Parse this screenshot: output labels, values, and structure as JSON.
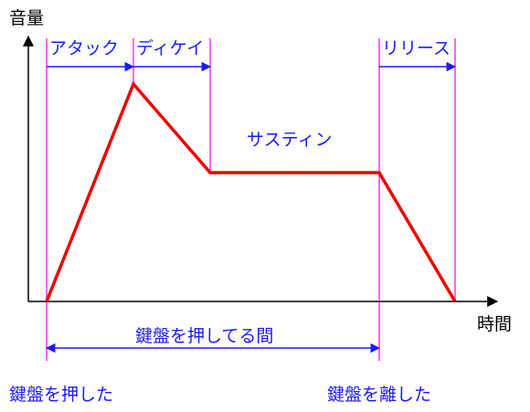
{
  "title": "",
  "axes": {
    "y_label": "音量",
    "x_label": "時間"
  },
  "phases": {
    "attack": "アタック",
    "decay": "ディケイ",
    "sustain": "サスティン",
    "release": "リリース"
  },
  "span": {
    "held_label": "鍵盤を押してる間"
  },
  "events": {
    "key_press": "鍵盤を押した",
    "key_release": "鍵盤を離した"
  },
  "colors": {
    "envelope": "#ee0000",
    "guide_lines": "#ff33ff",
    "arrows_text": "#1a1aff",
    "axes": "#000000"
  }
}
